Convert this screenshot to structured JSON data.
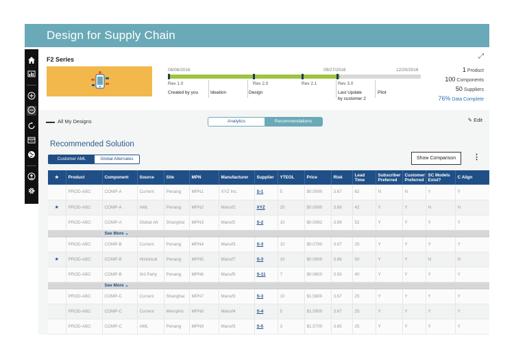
{
  "app": {
    "title": "Design for Supply Chain"
  },
  "sidebar": {
    "icons": [
      "home-icon",
      "dashboard-icon",
      "add-circle-icon",
      "dots-circle-icon",
      "refresh-icon",
      "report-icon",
      "globe-icon",
      "user-icon",
      "settings-icon"
    ]
  },
  "series": {
    "title": "F2 Series",
    "timeline": {
      "dates": [
        "06/06/2016",
        "09/27/2016",
        "12/20/2016"
      ],
      "progress": 0.68,
      "milestones": [
        {
          "label": "Rev 1.0",
          "sub": "Created by you"
        },
        {
          "label": "",
          "sub": "Ideation"
        },
        {
          "label": "Rev 2.0",
          "sub": "Design"
        },
        {
          "label": "Rev 2.1",
          "sub": ""
        },
        {
          "label": "Rev 3.0",
          "sub": "Last Update",
          "sub2": "by customer 2"
        },
        {
          "label": "",
          "sub": "Pilot"
        }
      ]
    },
    "stats": [
      {
        "num": "1",
        "label": "Product"
      },
      {
        "num": "100",
        "label": "Components"
      },
      {
        "num": "50",
        "label": "Suppliers"
      },
      {
        "num": "76%",
        "label": "Data Complete",
        "accent": "#2a72b5"
      }
    ]
  },
  "toolbar": {
    "all_designs": "All My Designs",
    "tabs": [
      "Analytics",
      "Recommendations"
    ],
    "active_tab": "Recommendations",
    "edit": "Edit"
  },
  "recommendation": {
    "title": "Recommended Solution",
    "alt_tabs": [
      "Customer AML",
      "Global Alternates"
    ],
    "active_alt_tab": "Customer AML",
    "show_comparison": "Show Comparison"
  },
  "table": {
    "columns": [
      "★",
      "Product",
      "Component",
      "Source",
      "Site",
      "MPN",
      "Manufacturer",
      "Supplier",
      "YTEOL",
      "Price",
      "Risk",
      "Lead Time",
      "Subscriber Preferred",
      "Customer Preferred",
      "SC Models Exist?",
      "C Align"
    ],
    "see_more": "See More",
    "groups": [
      {
        "rows": [
          {
            "star": "",
            "cells": [
              "PROD-ABC",
              "COMP-A",
              "Current",
              "Penang",
              "MPN1",
              "XYZ Inc.",
              "S-1",
              "5",
              "$0.0080",
              "3.67",
              "62",
              "N",
              "N",
              "Y",
              "Y"
            ]
          },
          {
            "star": "★",
            "cells": [
              "PROD-ABC",
              "COMP-A",
              "AML",
              "Penang",
              "MPN2",
              "Manuf2",
              "XYZ",
              "25",
              "$0.0080",
              "3.68",
              "42",
              "Y",
              "Y",
              "N",
              "N"
            ]
          },
          {
            "star": "",
            "cells": [
              "PROD-ABC",
              "COMP-A",
              "Global Alt",
              "Shanghai",
              "MPN3",
              "Manuf2",
              "S-2",
              "10",
              "$0.0082",
              "3.69",
              "52",
              "Y",
              "Y",
              "Y",
              "Y"
            ]
          }
        ]
      },
      {
        "rows": [
          {
            "star": "",
            "cells": [
              "PROD-ABC",
              "COMP-B",
              "Current",
              "Penang",
              "MPN4",
              "Manuf3",
              "S-3",
              "10",
              "$0.0780",
              "3.67",
              "25",
              "Y",
              "Y",
              "Y",
              "Y"
            ]
          },
          {
            "star": "★",
            "cells": [
              "PROD-ABC",
              "COMP-B",
              "Historical",
              "Penang",
              "MPN5",
              "Manuf7",
              "S-3",
              "10",
              "$0.0900",
              "3.66",
              "50",
              "Y",
              "Y",
              "N",
              "N"
            ]
          },
          {
            "star": "",
            "cells": [
              "PROD-ABC",
              "COMP-B",
              "3rd Party",
              "Penang",
              "MPN6",
              "Manuf5",
              "S-11",
              "7",
              "$0.0800",
              "3.93",
              "40",
              "Y",
              "Y",
              "Y",
              "Y"
            ]
          }
        ]
      },
      {
        "rows": [
          {
            "star": "",
            "cells": [
              "PROD-ABC",
              "COMP-C",
              "Current",
              "Shanghai",
              "MPN7",
              "Manuf3",
              "S-3",
              "10",
              "$1.5800",
              "3.67",
              "25",
              "Y",
              "Y",
              "Y",
              "Y"
            ]
          },
          {
            "star": "",
            "cells": [
              "PROD-ABC",
              "COMP-C",
              "Current",
              "Memphis",
              "MPN8",
              "Manuf4",
              "S-4",
              "5",
              "$1.5900",
              "3.67",
              "25",
              "Y",
              "Y",
              "Y",
              "Y"
            ]
          },
          {
            "star": "",
            "cells": [
              "PROD-ABC",
              "COMP-C",
              "AML",
              "Penang",
              "MPN9",
              "Manuf3",
              "S-5",
              "3",
              "$1.5700",
              "3.65",
              "25",
              "Y",
              "Y",
              "Y",
              "Y"
            ]
          }
        ]
      }
    ]
  }
}
